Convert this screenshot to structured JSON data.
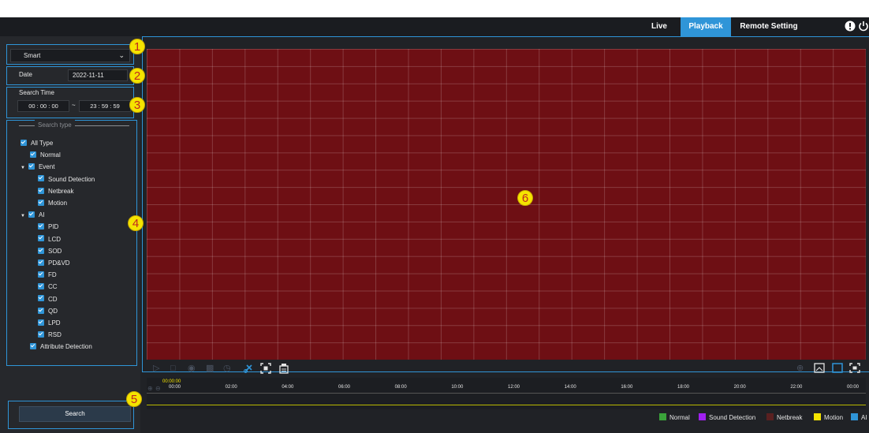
{
  "nav": {
    "live": "Live",
    "playback": "Playback",
    "remote_setting": "Remote Setting"
  },
  "badges": {
    "b1": "1",
    "b2": "2",
    "b3": "3",
    "b4": "4",
    "b5": "5",
    "b6": "6"
  },
  "search_mode": {
    "value": "Smart"
  },
  "date": {
    "label": "Date",
    "value": "2022-11-11"
  },
  "search_time": {
    "label": "Search Time",
    "start": {
      "h": "00",
      "m": "00",
      "s": "00"
    },
    "sep": "~",
    "end": {
      "h": "23",
      "m": "59",
      "s": "59"
    }
  },
  "search_type": {
    "legend": "Search type",
    "items": [
      {
        "label": "All Type",
        "level": 0
      },
      {
        "label": "Normal",
        "level": 1
      },
      {
        "label": "Event",
        "level": 0,
        "caret": true
      },
      {
        "label": "Sound Detection",
        "level": 2
      },
      {
        "label": "Netbreak",
        "level": 2
      },
      {
        "label": "Motion",
        "level": 2
      },
      {
        "label": "AI",
        "level": 0,
        "caret": true
      },
      {
        "label": "PID",
        "level": 2
      },
      {
        "label": "LCD",
        "level": 2
      },
      {
        "label": "SOD",
        "level": 2
      },
      {
        "label": "PD&VD",
        "level": 2
      },
      {
        "label": "FD",
        "level": 2
      },
      {
        "label": "CC",
        "level": 2
      },
      {
        "label": "CD",
        "level": 2
      },
      {
        "label": "QD",
        "level": 2
      },
      {
        "label": "LPD",
        "level": 2
      },
      {
        "label": "RSD",
        "level": 2
      },
      {
        "label": "Attribute Detection",
        "level": 1
      }
    ]
  },
  "search_button": "Search",
  "timeline": {
    "current": "00:00:00",
    "ticks": [
      "00:00",
      "02:00",
      "04:00",
      "06:00",
      "08:00",
      "10:00",
      "12:00",
      "14:00",
      "16:00",
      "18:00",
      "20:00",
      "22:00",
      "00:00"
    ]
  },
  "legend": [
    {
      "label": "Normal",
      "color": "#3aa33a"
    },
    {
      "label": "Sound Detection",
      "color": "#a020f0"
    },
    {
      "label": "Netbreak",
      "color": "#5a2020"
    },
    {
      "label": "Motion",
      "color": "#f5e400"
    },
    {
      "label": "AI",
      "color": "#2f95d8"
    }
  ],
  "colors": {
    "accent": "#2f95d8",
    "video_bg": "#6e0f14",
    "badge": "#f5e400"
  }
}
